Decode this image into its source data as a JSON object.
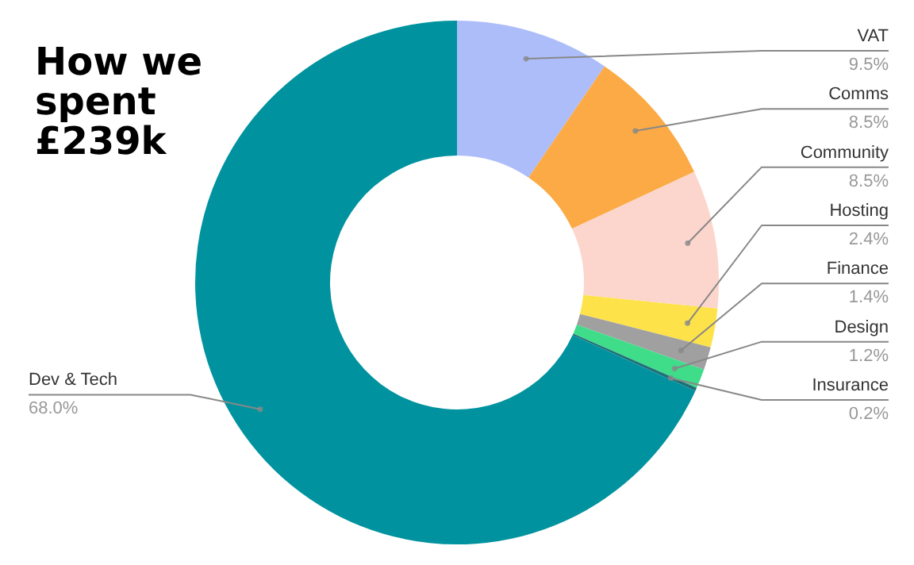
{
  "chart_data": {
    "type": "donut",
    "title": "How we spent £239k",
    "categories": [
      "VAT",
      "Comms",
      "Community",
      "Hosting",
      "Finance",
      "Design",
      "Insurance",
      "Dev & Tech"
    ],
    "values": [
      9.5,
      8.5,
      8.5,
      2.4,
      1.4,
      1.2,
      0.2,
      68.0
    ],
    "value_labels": [
      "9.5%",
      "8.5%",
      "8.5%",
      "2.4%",
      "1.4%",
      "1.2%",
      "0.2%",
      "68.0%"
    ],
    "colors": [
      "#adbdfa",
      "#fcaa45",
      "#fcd6cc",
      "#fde24a",
      "#a0a0a0",
      "#3fdc8a",
      "#1f6f78",
      "#00939f"
    ],
    "legend": false
  }
}
